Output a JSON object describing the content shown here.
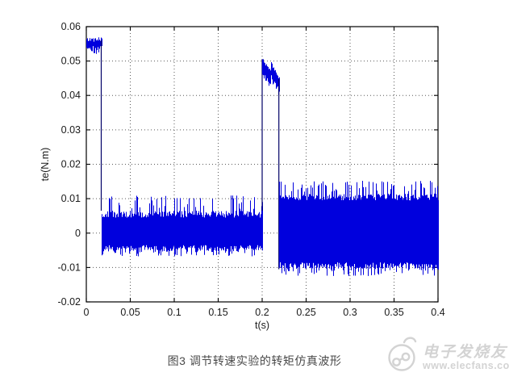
{
  "figure": {
    "caption": "图3 调节转速实验的转矩仿真波形"
  },
  "watermark": {
    "site_name": "电子发烧友",
    "url": "www.elecfans.com",
    "color": "#d3d3d3"
  },
  "chart_data": {
    "type": "line",
    "title": "",
    "xlabel": "t(s)",
    "ylabel": "te(N.m)",
    "xlim": [
      0,
      0.4
    ],
    "ylim": [
      -0.02,
      0.06
    ],
    "xticks": [
      0,
      0.05,
      0.1,
      0.15,
      0.2,
      0.25,
      0.3,
      0.35,
      0.4
    ],
    "xtick_labels": [
      "0",
      "0.05",
      "0.1",
      "0.15",
      "0.2",
      "0.25",
      "0.3",
      "0.35",
      "0.4"
    ],
    "yticks": [
      -0.02,
      -0.01,
      0,
      0.01,
      0.02,
      0.03,
      0.04,
      0.05,
      0.06
    ],
    "ytick_labels": [
      "-0.02",
      "-0.01",
      "0",
      "0.01",
      "0.02",
      "0.03",
      "0.04",
      "0.05",
      "0.06"
    ],
    "grid": true,
    "legend": null,
    "line_color": "#0000dd",
    "edge_color": "#000066",
    "series_description": "Electromagnetic torque te(N.m) vs time: ~0.055 N.m from 0 to 0.017 s, dense noise band -0.006..0.007 (spikes to 0.011) from 0.017 to 0.2 s, sawtooth pulse ~0.045..0.050 from 0.2 to 0.219 s, dense noise band -0.0105..0.0115 (spikes to 0.015) from 0.219 to 0.4 s",
    "segments": [
      {
        "kind": "noisy_line",
        "t_start": 0,
        "t_end": 0.017,
        "level": 0.055,
        "jitter": 0.0012,
        "spike_down": 0.052,
        "end_bump": 0.057
      },
      {
        "kind": "step",
        "t": 0.017,
        "from": 0.056,
        "to": 0.0065
      },
      {
        "kind": "noise_band",
        "t_start": 0.017,
        "t_end": 0.2,
        "top": 0.0065,
        "bottom": -0.0055,
        "spike_top": 0.011,
        "spike_bottom": -0.0068
      },
      {
        "kind": "step",
        "t": 0.2,
        "from": 0.0065,
        "to": 0.0505
      },
      {
        "kind": "sawtooth_pulse",
        "t_start": 0.2,
        "t_end": 0.219,
        "teeth": [
          {
            "start": 0.0505,
            "end": 0.047
          },
          {
            "start": 0.0495,
            "end": 0.0448
          }
        ],
        "thickness": 0.004
      },
      {
        "kind": "step",
        "t": 0.219,
        "from": 0.0448,
        "to": -0.0105
      },
      {
        "kind": "noise_band",
        "t_start": 0.219,
        "t_end": 0.4,
        "top": 0.0115,
        "bottom": -0.0105,
        "spike_top": 0.0152,
        "spike_bottom": -0.0125
      }
    ]
  }
}
